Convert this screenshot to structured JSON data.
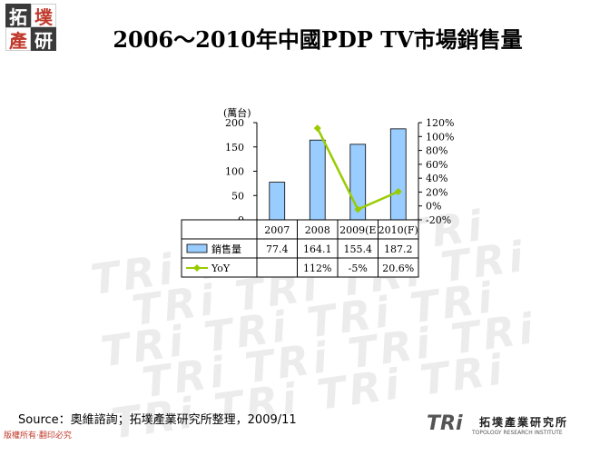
{
  "title": "2006～2010年中國PDP TV市場銷售量",
  "logo": {
    "chars": [
      "拓",
      "墣",
      "產",
      "研"
    ]
  },
  "watermark_text": "TRi",
  "source": "Source：奧維諮詢；拓墣產業研究所整理，2009/11",
  "copyright": "版權所有‧翻印必究",
  "brand": {
    "logo": "TRi",
    "name": "拓墣產業研究所",
    "name_en": "TOPOLOGY RESEARCH INSTITUTE"
  },
  "chart_data": {
    "type": "bar",
    "unit_label": "(萬台)",
    "categories": [
      "2007",
      "2008",
      "2009(E",
      "2010(F)"
    ],
    "series": [
      {
        "name": "銷售量",
        "type": "bar",
        "values": [
          77.4,
          164.1,
          155.4,
          187.2
        ],
        "labels": [
          "77.4",
          "164.1",
          "155.4",
          "187.2"
        ],
        "color": "#99ccff"
      },
      {
        "name": "YoY",
        "type": "line",
        "axis": "right",
        "values": [
          null,
          112,
          -5,
          20.6
        ],
        "labels": [
          "",
          "112%",
          "-5%",
          "20.6%"
        ],
        "color": "#99cc00"
      }
    ],
    "ylim": [
      0,
      200
    ],
    "yticks": [
      "0",
      "50",
      "100",
      "150",
      "200"
    ],
    "y2lim": [
      -20,
      120
    ],
    "y2ticks": [
      "-20%",
      "0%",
      "20%",
      "40%",
      "60%",
      "80%",
      "100%",
      "120%"
    ],
    "grid": false,
    "legend": "table"
  }
}
